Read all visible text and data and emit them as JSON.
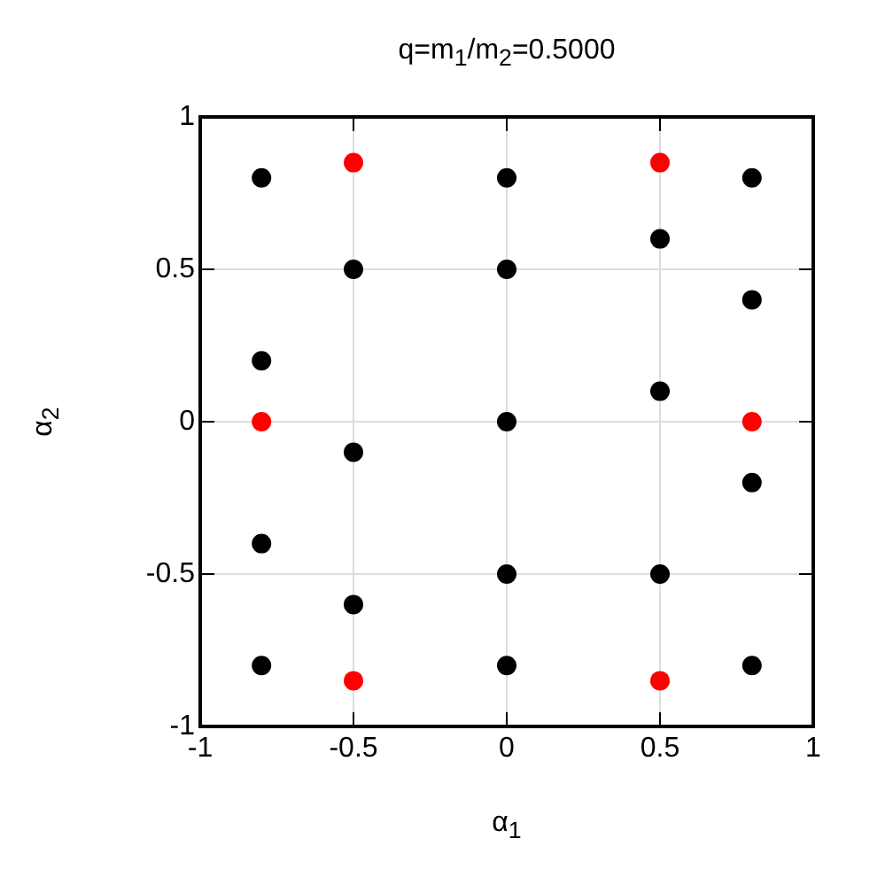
{
  "chart_data": {
    "type": "scatter",
    "title": "q=m$_{1}$/m$_{2}$=0.5000",
    "xlabel": "α$_{1}$",
    "ylabel": "α$_{2}$",
    "series": [
      {
        "color": "#000000",
        "x": [
          -0.8,
          -0.8,
          -0.8,
          -0.8,
          -0.5,
          -0.5,
          -0.5,
          0,
          0,
          0,
          0,
          0,
          0.5,
          0.5,
          0.5,
          0.8,
          0.8,
          0.8,
          0.8
        ],
        "values": [
          0.8,
          0.2,
          -0.4,
          -0.8,
          0.5,
          -0.1,
          -0.6,
          0.8,
          0.5,
          0,
          -0.5,
          -0.8,
          0.6,
          0.1,
          -0.5,
          0.8,
          0.4,
          -0.2,
          -0.8
        ]
      },
      {
        "color": "#ff0000",
        "x": [
          -0.8,
          -0.5,
          -0.5,
          0.5,
          0.5,
          0.8
        ],
        "values": [
          0,
          0.85,
          -0.85,
          0.85,
          -0.85,
          0
        ]
      }
    ],
    "xlim": [
      -1,
      1
    ],
    "ylim": [
      -1,
      1
    ],
    "xticks": [
      -1,
      -0.5,
      0,
      0.5,
      1
    ],
    "yticks": [
      -1,
      -0.5,
      0,
      0.5,
      1
    ],
    "grid": true,
    "marker": "circle",
    "legend": false
  }
}
